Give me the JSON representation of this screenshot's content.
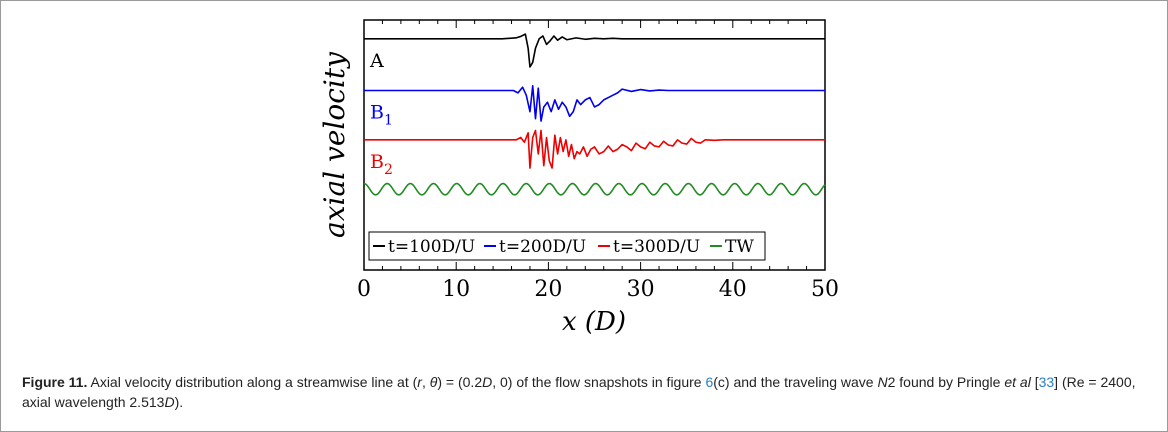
{
  "chart_data": {
    "type": "line",
    "xlabel": "x (D)",
    "ylabel": "axial velocity",
    "xlim": [
      0,
      50
    ],
    "x_ticks": [
      "0",
      "10",
      "20",
      "30",
      "40",
      "50"
    ],
    "y_ticks": [],
    "grid": false,
    "legend_position": "bottom",
    "series": [
      {
        "name": "t=100D/U",
        "curve_label": "A",
        "color": "#000000",
        "baseline": 3.0,
        "x": [
          0,
          15.0,
          16.5,
          17.0,
          17.5,
          17.8,
          18.0,
          18.3,
          18.6,
          19.0,
          19.4,
          19.8,
          20.2,
          20.6,
          21.0,
          21.5,
          22.0,
          23.0,
          24.0,
          25.0,
          26.0,
          27.0,
          28.0,
          50
        ],
        "y": [
          3.0,
          3.0,
          3.02,
          3.05,
          3.1,
          2.8,
          2.4,
          2.5,
          2.8,
          3.0,
          3.06,
          2.88,
          2.96,
          3.06,
          2.97,
          3.04,
          2.98,
          3.02,
          2.99,
          3.01,
          3.0,
          3.01,
          3.0,
          3.0
        ]
      },
      {
        "name": "t=200D/U",
        "curve_label": "B1",
        "color": "#0000ee",
        "baseline": 1.9,
        "x": [
          0,
          15.0,
          16.2,
          16.7,
          17.2,
          17.6,
          18.0,
          18.3,
          18.6,
          18.9,
          19.2,
          19.5,
          19.9,
          20.3,
          20.7,
          21.1,
          21.5,
          21.9,
          22.3,
          22.7,
          23.1,
          23.5,
          24.0,
          24.5,
          25.0,
          25.5,
          26.0,
          26.5,
          27.0,
          27.5,
          28.0,
          29.0,
          30.0,
          31.0,
          32.0,
          33.0,
          50
        ],
        "y": [
          1.9,
          1.9,
          1.9,
          1.85,
          1.97,
          1.8,
          1.45,
          2.0,
          1.3,
          1.95,
          1.25,
          1.55,
          1.65,
          1.45,
          1.7,
          1.5,
          1.65,
          1.55,
          1.35,
          1.45,
          1.7,
          1.6,
          1.7,
          1.75,
          1.55,
          1.6,
          1.7,
          1.75,
          1.8,
          1.85,
          1.93,
          1.88,
          1.92,
          1.89,
          1.91,
          1.9,
          1.9
        ]
      },
      {
        "name": "t=300D/U",
        "curve_label": "B2",
        "color": "#ee0000",
        "baseline": 0.85,
        "x": [
          0,
          15.0,
          16.5,
          17.0,
          17.4,
          17.8,
          18.0,
          18.3,
          18.6,
          18.9,
          19.2,
          19.5,
          19.8,
          20.1,
          20.4,
          20.7,
          21.0,
          21.3,
          21.6,
          21.9,
          22.2,
          22.5,
          22.8,
          23.1,
          23.4,
          23.8,
          24.2,
          24.6,
          25.0,
          25.5,
          26.0,
          26.5,
          27.0,
          27.5,
          28.0,
          28.5,
          29.0,
          29.5,
          30.0,
          30.5,
          31.0,
          31.5,
          32.0,
          32.5,
          33.0,
          33.5,
          34.0,
          34.5,
          35.0,
          35.5,
          36.0,
          36.5,
          37.0,
          38.0,
          39.0,
          50
        ],
        "y": [
          0.85,
          0.85,
          0.85,
          0.9,
          0.8,
          1.0,
          0.25,
          0.9,
          1.05,
          0.55,
          1.05,
          0.3,
          0.9,
          0.4,
          0.25,
          0.95,
          0.55,
          0.9,
          0.6,
          0.85,
          0.5,
          0.75,
          0.45,
          0.6,
          0.55,
          0.7,
          0.5,
          0.65,
          0.7,
          0.55,
          0.6,
          0.72,
          0.6,
          0.65,
          0.75,
          0.7,
          0.62,
          0.78,
          0.7,
          0.66,
          0.8,
          0.72,
          0.7,
          0.82,
          0.74,
          0.72,
          0.85,
          0.78,
          0.76,
          0.88,
          0.8,
          0.78,
          0.85,
          0.84,
          0.85,
          0.85
        ]
      },
      {
        "name": "TW",
        "curve_label": "",
        "color": "#228b22",
        "baseline": -0.2,
        "wavelength": 2.513,
        "amplitude": 0.12,
        "x": [
          0,
          50
        ],
        "y": [
          -0.2,
          -0.2
        ]
      }
    ]
  },
  "legend": {
    "entries": [
      "t=100D/U",
      "t=200D/U",
      "t=300D/U",
      "TW"
    ]
  },
  "caption": {
    "label": "Figure 11.",
    "part1": " Axial velocity distribution along a streamwise line at (",
    "r": "r",
    "comma": ", ",
    "theta": "θ",
    "part2": ") = (0.2",
    "D1": "D",
    "part3": ", 0) of the flow snapshots in figure ",
    "fig_ref": "6",
    "part4": "(c) and the traveling wave ",
    "N2": "N",
    "part5": "2 found by Pringle ",
    "etal": "et al",
    "cite_open": " [",
    "cite": "33",
    "part6": "] (Re = 2400, axial wavelength 2.513",
    "D2": "D",
    "part7": ")."
  }
}
